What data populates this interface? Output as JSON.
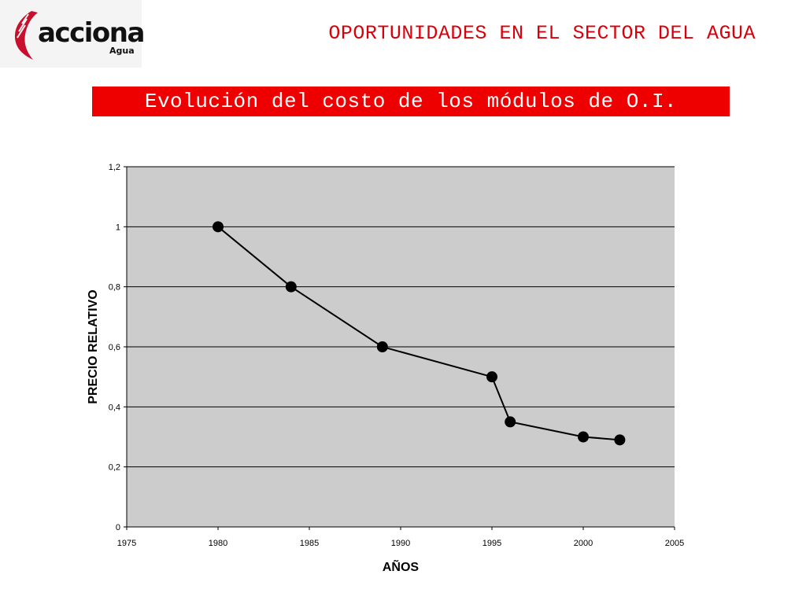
{
  "logo": {
    "name": "acciona",
    "sub": "Agua",
    "icon": "acciona-leaf-logo-icon",
    "color": "#c8102e"
  },
  "header": {
    "title": "OPORTUNIDADES EN EL SECTOR DEL AGUA"
  },
  "banner": {
    "title": "Evolución del costo de los módulos de O.I."
  },
  "colors": {
    "accent": "#ee0000",
    "plot_background": "#cccccc",
    "line": "#000000"
  },
  "chart_data": {
    "type": "line",
    "title": "Evolución del costo de los módulos de O.I.",
    "xlabel": "AÑOS",
    "ylabel": "PRECIO RELATIVO",
    "xlim": [
      1975,
      2005
    ],
    "ylim": [
      0,
      1.2
    ],
    "x_ticks": [
      "1975",
      "1980",
      "1985",
      "1990",
      "1995",
      "2000",
      "2005"
    ],
    "y_ticks": [
      "0",
      "0,2",
      "0,4",
      "0,6",
      "0,8",
      "1",
      "1,2"
    ],
    "grid": "horizontal",
    "legend": "none",
    "series": [
      {
        "x": [
          1980,
          1984,
          1989,
          1995,
          1996,
          2000,
          2002
        ],
        "y": [
          1.0,
          0.8,
          0.6,
          0.5,
          0.35,
          0.3,
          0.29
        ]
      }
    ]
  }
}
